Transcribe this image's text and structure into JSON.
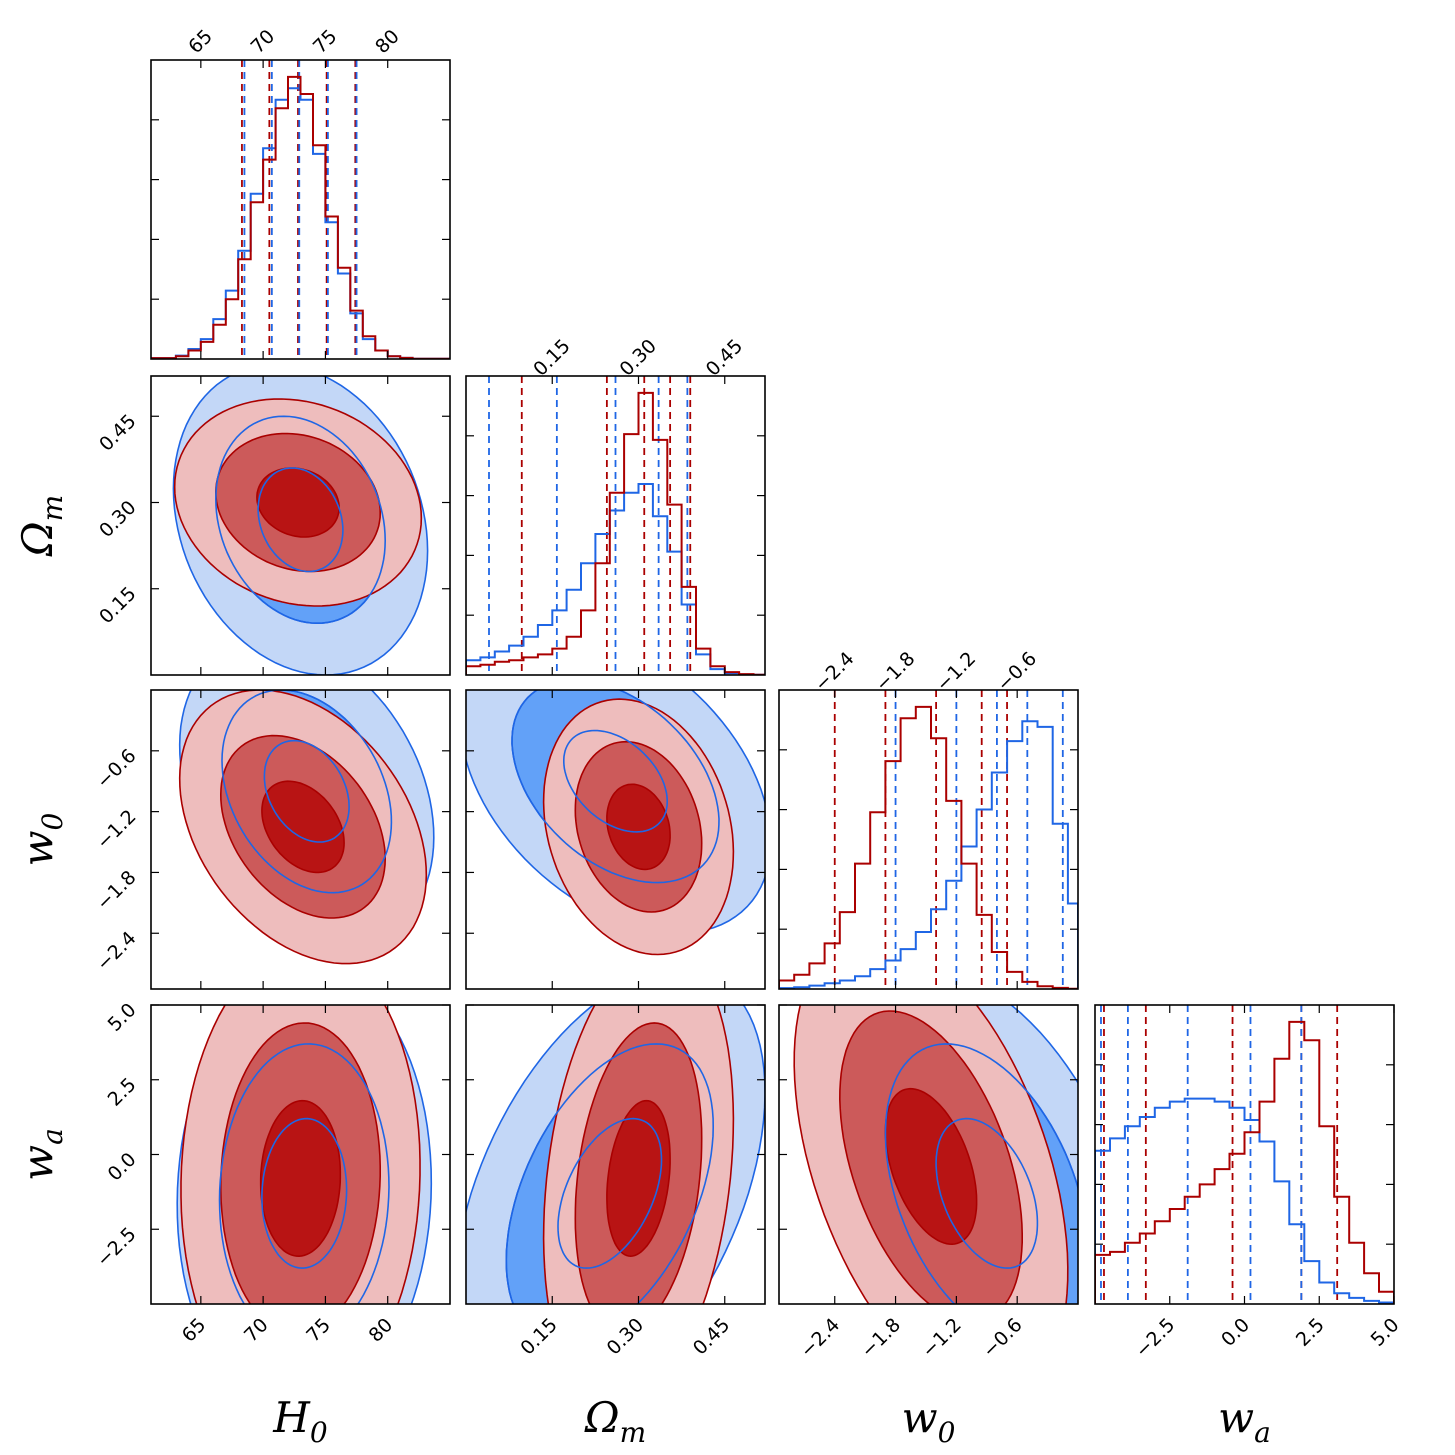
{
  "chart_data": {
    "type": "corner",
    "parameters": [
      {
        "key": "H0",
        "label_main": "H",
        "label_sub": "0",
        "range": [
          61,
          85
        ],
        "ticks": [
          65,
          70,
          75,
          80
        ],
        "tick_labels": [
          "65",
          "70",
          "75",
          "80"
        ]
      },
      {
        "key": "Om",
        "label_main": "Ω",
        "label_sub": "m",
        "range": [
          0.0,
          0.52
        ],
        "ticks": [
          0.15,
          0.3,
          0.45
        ],
        "tick_labels": [
          "0.15",
          "0.30",
          "0.45"
        ]
      },
      {
        "key": "w0",
        "label_main": "w",
        "label_sub": "0",
        "range": [
          -2.95,
          0.0
        ],
        "ticks": [
          -2.4,
          -1.8,
          -1.2,
          -0.6
        ],
        "tick_labels": [
          "−2.4",
          "−1.8",
          "−1.2",
          "−0.6"
        ]
      },
      {
        "key": "wa",
        "label_main": "w",
        "label_sub": "a",
        "range": [
          -5.0,
          5.0
        ],
        "ticks": [
          -2.5,
          0.0,
          2.5,
          5.0
        ],
        "tick_labels": [
          "−2.5",
          "0.0",
          "2.5",
          "5.0"
        ]
      }
    ],
    "series": [
      {
        "color": "#aa0000",
        "fill_levels": [
          "#eebdbd",
          "#cc5a5a",
          "#b81414"
        ],
        "marginals": {
          "H0": {
            "edges": [
              61,
              63,
              64,
              65,
              66,
              67,
              68,
              69,
              70,
              71,
              72,
              73,
              74,
              75,
              76,
              77,
              78,
              79,
              80,
              81,
              82,
              85
            ],
            "heights": [
              0.003,
              0.01,
              0.03,
              0.06,
              0.12,
              0.21,
              0.35,
              0.55,
              0.7,
              0.88,
              0.99,
              0.93,
              0.75,
              0.5,
              0.32,
              0.17,
              0.08,
              0.03,
              0.01,
              0.004,
              0.001
            ],
            "quantiles": [
              68.3,
              70.5,
              72.8,
              75.1,
              77.4
            ]
          },
          "Om": {
            "edges": [
              0.0,
              0.025,
              0.05,
              0.075,
              0.1,
              0.125,
              0.15,
              0.175,
              0.2,
              0.225,
              0.25,
              0.275,
              0.3,
              0.325,
              0.35,
              0.375,
              0.4,
              0.425,
              0.45,
              0.475,
              0.5,
              0.52
            ],
            "heights": [
              0.03,
              0.035,
              0.045,
              0.05,
              0.06,
              0.07,
              0.09,
              0.13,
              0.22,
              0.38,
              0.62,
              0.82,
              0.96,
              0.8,
              0.58,
              0.3,
              0.09,
              0.03,
              0.01,
              0.003,
              0.001
            ],
            "quantiles": [
              0.097,
              0.245,
              0.31,
              0.355,
              0.39
            ]
          },
          "w0": {
            "edges": [
              -2.95,
              -2.8,
              -2.65,
              -2.5,
              -2.35,
              -2.2,
              -2.05,
              -1.9,
              -1.75,
              -1.6,
              -1.45,
              -1.3,
              -1.15,
              -1.0,
              -0.85,
              -0.7,
              -0.55,
              -0.4,
              -0.25,
              -0.1,
              0.0
            ],
            "heights": [
              0.03,
              0.05,
              0.09,
              0.16,
              0.27,
              0.44,
              0.62,
              0.8,
              0.95,
              0.99,
              0.88,
              0.66,
              0.44,
              0.26,
              0.13,
              0.06,
              0.025,
              0.01,
              0.004,
              0.001
            ],
            "quantiles": [
              -2.4,
              -1.9,
              -1.4,
              -0.95,
              -0.7
            ]
          },
          "wa": {
            "edges": [
              -5.0,
              -4.5,
              -4.0,
              -3.5,
              -3.0,
              -2.5,
              -2.0,
              -1.5,
              -1.0,
              -0.5,
              0.0,
              0.5,
              1.0,
              1.5,
              2.0,
              2.5,
              3.0,
              3.5,
              4.0,
              4.5,
              5.0
            ],
            "heights": [
              0.16,
              0.17,
              0.2,
              0.23,
              0.27,
              0.31,
              0.35,
              0.39,
              0.44,
              0.49,
              0.56,
              0.66,
              0.8,
              0.92,
              0.86,
              0.58,
              0.35,
              0.2,
              0.1,
              0.04
            ],
            "quantiles": [
              -4.7,
              -3.3,
              -0.4,
              1.9,
              3.1
            ]
          }
        }
      },
      {
        "color": "#1f66e5",
        "fill_levels": [
          "#c3d7f7",
          "#62a1f8",
          "#1a6df0"
        ],
        "marginals": {
          "H0": {
            "edges": [
              61,
              63,
              64,
              65,
              66,
              67,
              68,
              69,
              70,
              71,
              72,
              73,
              74,
              75,
              76,
              77,
              78,
              79,
              80,
              81,
              82,
              85
            ],
            "heights": [
              0.003,
              0.012,
              0.035,
              0.07,
              0.14,
              0.24,
              0.38,
              0.58,
              0.74,
              0.91,
              0.95,
              0.91,
              0.72,
              0.48,
              0.3,
              0.16,
              0.07,
              0.03,
              0.01,
              0.004,
              0.001
            ],
            "quantiles": [
              68.5,
              70.7,
              72.9,
              75.2,
              77.5
            ]
          },
          "Om": {
            "edges": [
              0.0,
              0.025,
              0.05,
              0.075,
              0.1,
              0.125,
              0.15,
              0.175,
              0.2,
              0.225,
              0.25,
              0.275,
              0.3,
              0.325,
              0.35,
              0.375,
              0.4,
              0.425,
              0.45,
              0.475,
              0.5,
              0.52
            ],
            "heights": [
              0.05,
              0.06,
              0.08,
              0.1,
              0.13,
              0.17,
              0.22,
              0.29,
              0.38,
              0.48,
              0.56,
              0.62,
              0.65,
              0.54,
              0.42,
              0.24,
              0.07,
              0.02,
              0.006,
              0.002,
              0.001
            ],
            "quantiles": [
              0.04,
              0.158,
              0.26,
              0.335,
              0.385
            ]
          },
          "w0": {
            "edges": [
              -2.95,
              -2.8,
              -2.65,
              -2.5,
              -2.35,
              -2.2,
              -2.05,
              -1.9,
              -1.75,
              -1.6,
              -1.45,
              -1.3,
              -1.15,
              -1.0,
              -0.85,
              -0.7,
              -0.55,
              -0.4,
              -0.25,
              -0.1,
              0.0
            ],
            "heights": [
              0.003,
              0.006,
              0.012,
              0.02,
              0.03,
              0.045,
              0.07,
              0.1,
              0.14,
              0.2,
              0.28,
              0.38,
              0.5,
              0.63,
              0.76,
              0.87,
              0.94,
              0.92,
              0.58,
              0.3
            ],
            "quantiles": [
              -1.8,
              -1.2,
              -0.8,
              -0.5,
              -0.15
            ]
          },
          "wa": {
            "edges": [
              -5.0,
              -4.5,
              -4.0,
              -3.5,
              -3.0,
              -2.5,
              -2.0,
              -1.5,
              -1.0,
              -0.5,
              0.0,
              0.5,
              1.0,
              1.5,
              2.0,
              2.5,
              3.0,
              3.5,
              4.0,
              4.5,
              5.0
            ],
            "heights": [
              0.5,
              0.54,
              0.58,
              0.61,
              0.64,
              0.66,
              0.67,
              0.67,
              0.66,
              0.64,
              0.6,
              0.53,
              0.4,
              0.26,
              0.14,
              0.07,
              0.035,
              0.02,
              0.01,
              0.005
            ],
            "quantiles": [
              -4.8,
              -3.9,
              -1.9,
              0.2,
              1.9
            ]
          }
        }
      }
    ],
    "pairs_red": [
      {
        "row": 1,
        "col": 0,
        "center": [
          72.8,
          0.3
        ],
        "sd": [
          3.3,
          0.06
        ],
        "rho": -0.15
      },
      {
        "row": 2,
        "col": 0,
        "center": [
          73.2,
          -1.35
        ],
        "sd": [
          3.3,
          0.45
        ],
        "rho": -0.35
      },
      {
        "row": 2,
        "col": 1,
        "center": [
          0.3,
          -1.35
        ],
        "sd": [
          0.055,
          0.42
        ],
        "rho": -0.2
      },
      {
        "row": 3,
        "col": 0,
        "center": [
          73.0,
          -0.8
        ],
        "sd": [
          3.2,
          2.6
        ],
        "rho": 0.05
      },
      {
        "row": 3,
        "col": 1,
        "center": [
          0.3,
          -0.8
        ],
        "sd": [
          0.055,
          2.6
        ],
        "rho": 0.25
      },
      {
        "row": 3,
        "col": 2,
        "center": [
          -1.45,
          -0.4
        ],
        "sd": [
          0.45,
          2.6
        ],
        "rho": -0.45
      }
    ],
    "pairs_blue": [
      {
        "row": 1,
        "col": 0,
        "center": [
          73.0,
          0.27
        ],
        "sd": [
          3.4,
          0.09
        ],
        "rho": -0.2
      },
      {
        "row": 2,
        "col": 0,
        "center": [
          73.5,
          -1.0
        ],
        "sd": [
          3.4,
          0.5
        ],
        "rho": -0.3
      },
      {
        "row": 2,
        "col": 1,
        "center": [
          0.26,
          -0.9
        ],
        "sd": [
          0.09,
          0.5
        ],
        "rho": -0.4
      },
      {
        "row": 3,
        "col": 0,
        "center": [
          73.3,
          -1.3
        ],
        "sd": [
          3.4,
          2.5
        ],
        "rho": 0.05
      },
      {
        "row": 3,
        "col": 1,
        "center": [
          0.25,
          -1.3
        ],
        "sd": [
          0.09,
          2.5
        ],
        "rho": 0.45
      },
      {
        "row": 3,
        "col": 2,
        "center": [
          -0.9,
          -1.3
        ],
        "sd": [
          0.5,
          2.5
        ],
        "rho": -0.4
      }
    ],
    "contour_levels_sigma": [
      1,
      2,
      3
    ]
  }
}
